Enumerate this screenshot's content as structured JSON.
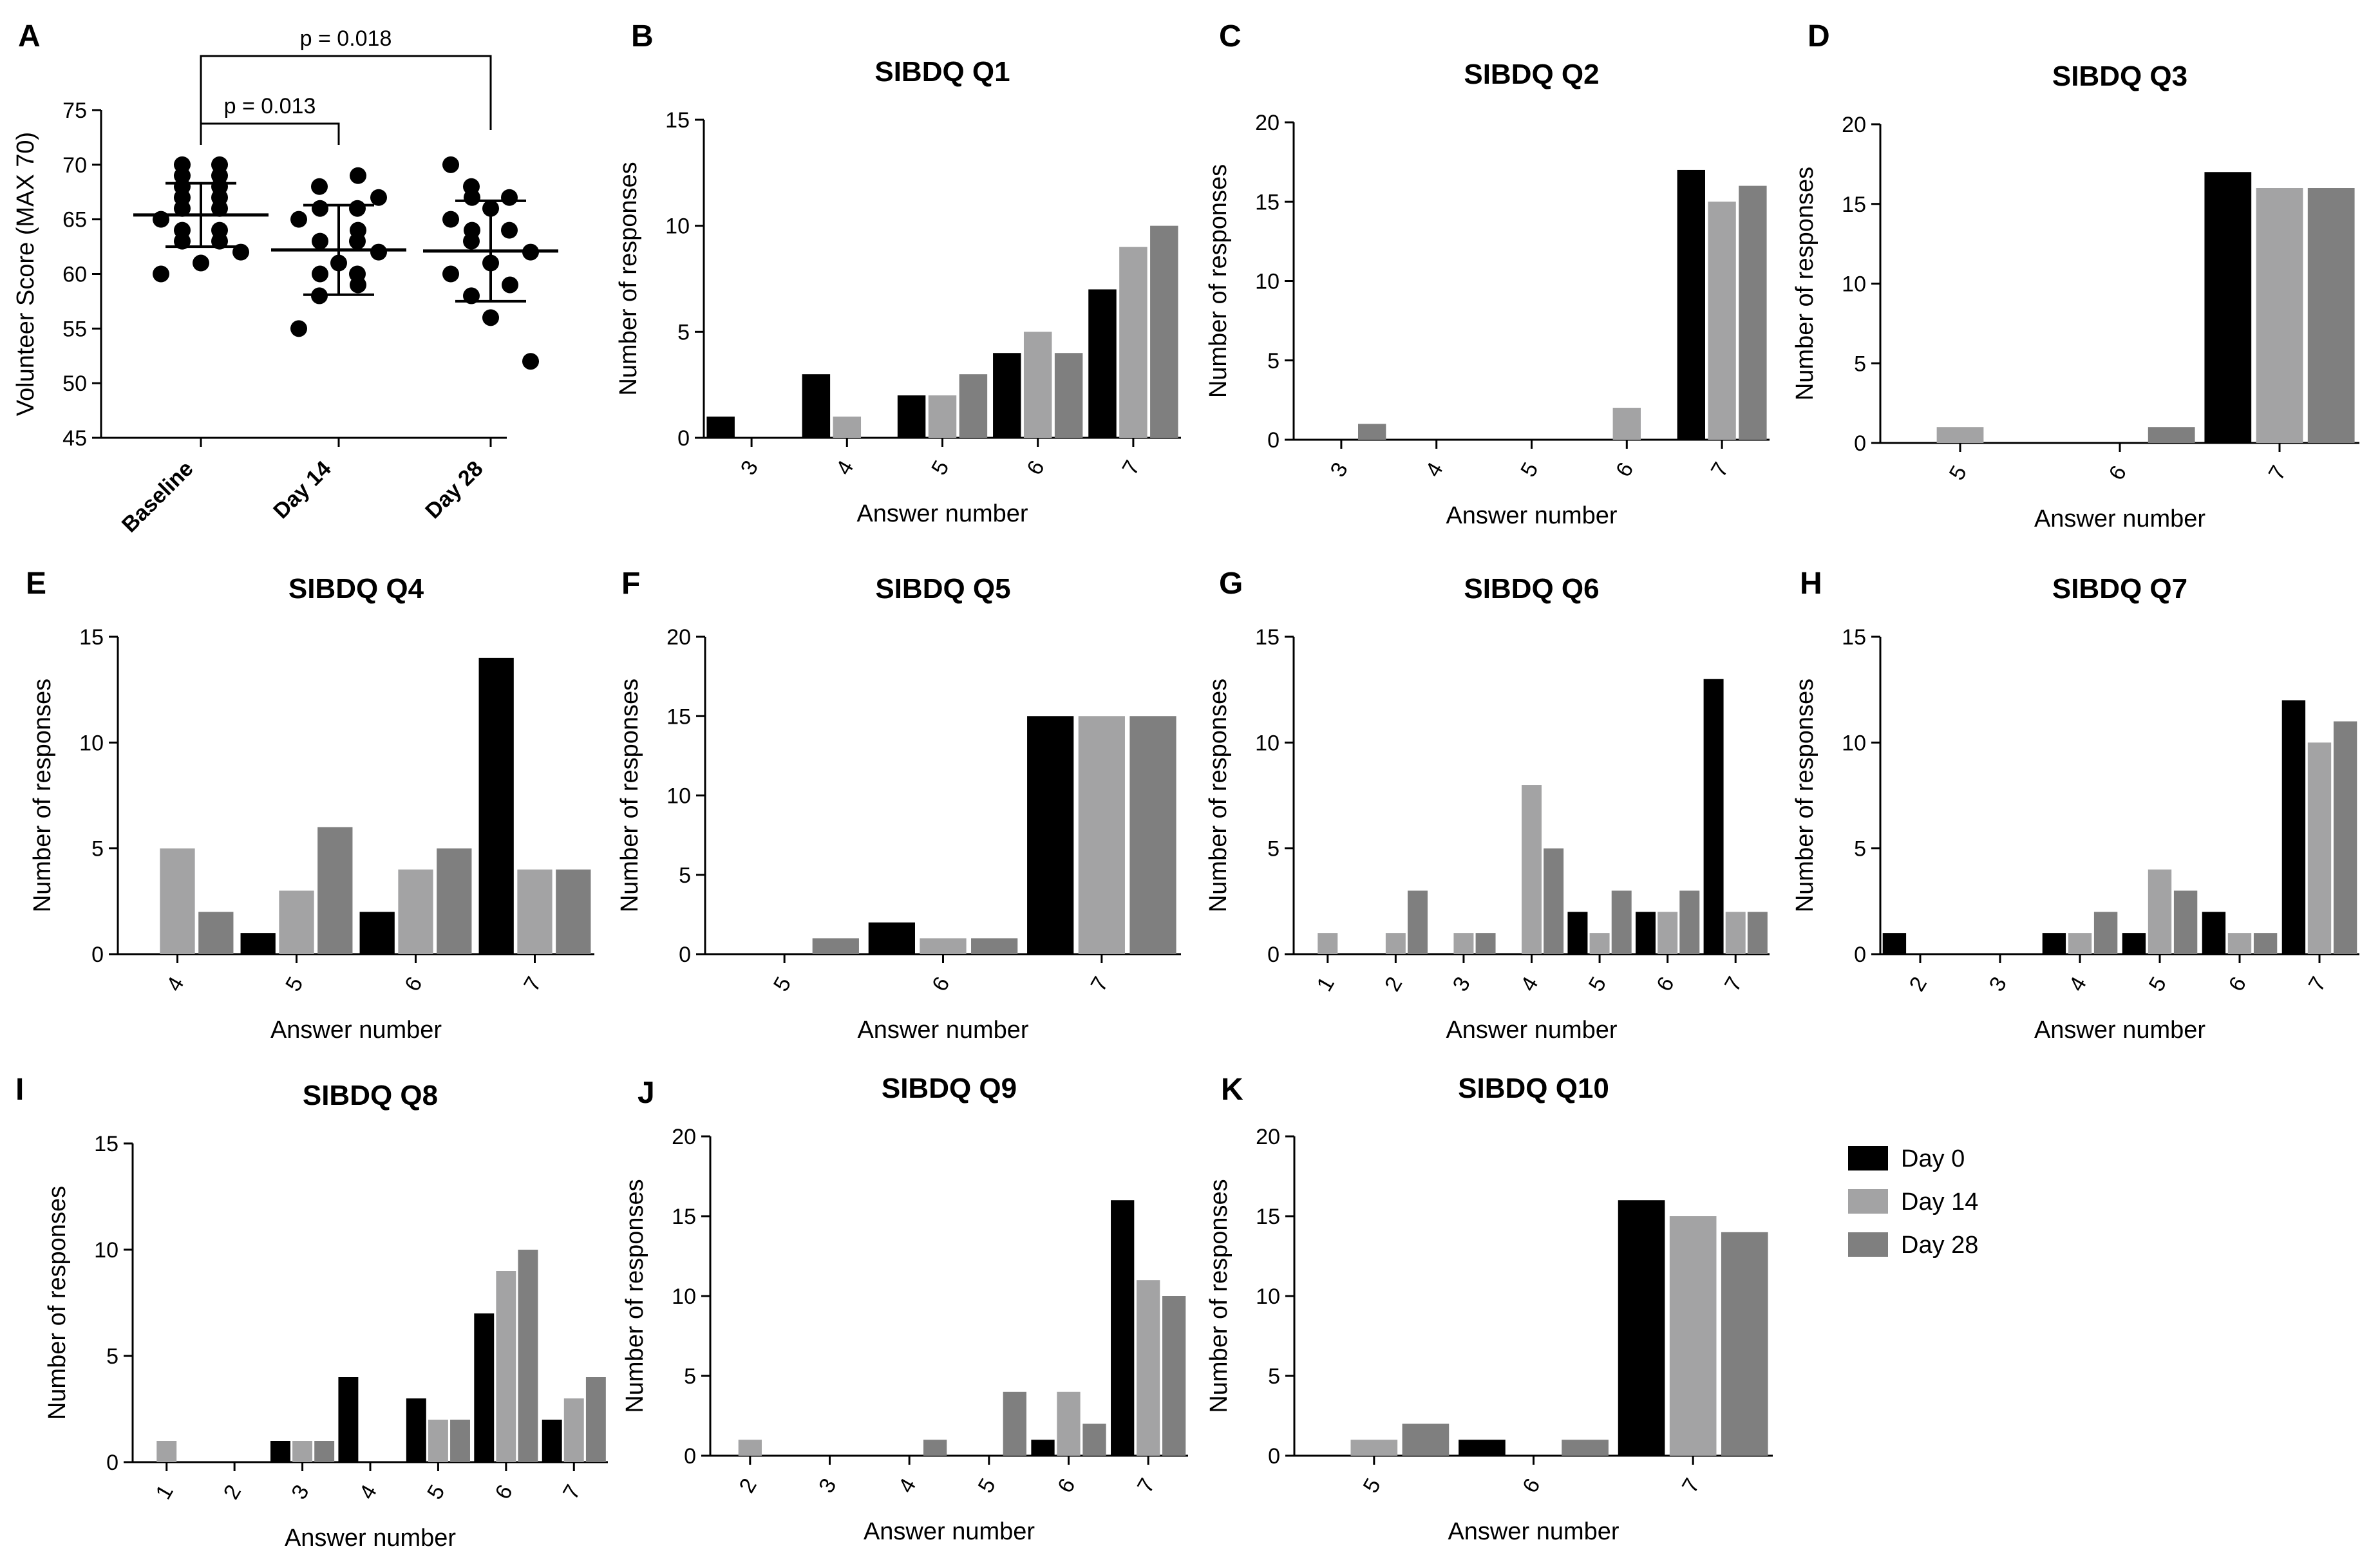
{
  "colors": {
    "day0": "#000000",
    "day14": "#a3a3a4",
    "day28": "#7f7f7f"
  },
  "legend": {
    "items": [
      {
        "label": "Day 0",
        "color_key": "day0"
      },
      {
        "label": "Day 14",
        "color_key": "day14"
      },
      {
        "label": "Day 28",
        "color_key": "day28"
      }
    ]
  },
  "chart_data": [
    {
      "id": "A",
      "type": "scatter",
      "letter": "A",
      "title": "",
      "ylabel": "Volunteer Score (MAX 70)",
      "ylim": [
        45,
        75
      ],
      "yticks": [
        45,
        50,
        55,
        60,
        65,
        70,
        75
      ],
      "categories": [
        "Baseline",
        "Day 14",
        "Day 28"
      ],
      "points": [
        [
          70,
          70,
          69,
          69,
          68,
          68,
          67,
          67,
          66,
          66,
          65,
          64,
          64,
          63,
          63,
          62,
          61,
          60
        ],
        [
          69,
          68,
          67,
          66,
          66,
          65,
          64,
          63,
          63,
          62,
          61,
          60,
          60,
          59,
          58,
          55
        ],
        [
          70,
          68,
          67,
          67,
          66,
          65,
          64,
          64,
          63,
          62,
          61,
          60,
          59,
          58,
          56,
          52
        ]
      ],
      "means": [
        65.4,
        62.2,
        62.1
      ],
      "sd": [
        2.9,
        4.1,
        4.6
      ],
      "comparisons": [
        {
          "from": 0,
          "to": 1,
          "label": "p = 0.013"
        },
        {
          "from": 0,
          "to": 2,
          "label": "p = 0.018"
        }
      ]
    },
    {
      "id": "B",
      "type": "bar",
      "letter": "B",
      "title": "SIBDQ Q1",
      "xlabel": "Answer number",
      "ylabel": "Number of responses",
      "ylim": [
        0,
        15
      ],
      "yticks": [
        0,
        5,
        10,
        15
      ],
      "categories": [
        "3",
        "4",
        "5",
        "6",
        "7"
      ],
      "series": [
        {
          "name": "Day 0",
          "values": [
            1,
            3,
            2,
            4,
            7
          ]
        },
        {
          "name": "Day 14",
          "values": [
            0,
            1,
            2,
            5,
            9
          ]
        },
        {
          "name": "Day 28",
          "values": [
            0,
            0,
            3,
            4,
            10
          ]
        }
      ]
    },
    {
      "id": "C",
      "type": "bar",
      "letter": "C",
      "title": "SIBDQ Q2",
      "xlabel": "Answer number",
      "ylabel": "Number of responses",
      "ylim": [
        0,
        20
      ],
      "yticks": [
        0,
        5,
        10,
        15,
        20
      ],
      "categories": [
        "3",
        "4",
        "5",
        "6",
        "7"
      ],
      "series": [
        {
          "name": "Day 0",
          "values": [
            0,
            0,
            0,
            0,
            17
          ]
        },
        {
          "name": "Day 14",
          "values": [
            0,
            0,
            0,
            2,
            15
          ]
        },
        {
          "name": "Day 28",
          "values": [
            1,
            0,
            0,
            0,
            16
          ]
        }
      ]
    },
    {
      "id": "D",
      "type": "bar",
      "letter": "D",
      "title": "SIBDQ Q3",
      "xlabel": "Answer number",
      "ylabel": "Number of responses",
      "ylim": [
        0,
        20
      ],
      "yticks": [
        0,
        5,
        10,
        15,
        20
      ],
      "categories": [
        "5",
        "6",
        "7"
      ],
      "series": [
        {
          "name": "Day 0",
          "values": [
            0,
            0,
            17
          ]
        },
        {
          "name": "Day 14",
          "values": [
            1,
            0,
            16
          ]
        },
        {
          "name": "Day 28",
          "values": [
            0,
            1,
            16
          ]
        }
      ]
    },
    {
      "id": "E",
      "type": "bar",
      "letter": "E",
      "title": "SIBDQ Q4",
      "xlabel": "Answer number",
      "ylabel": "Number of responses",
      "ylim": [
        0,
        15
      ],
      "yticks": [
        0,
        5,
        10,
        15
      ],
      "categories": [
        "4",
        "5",
        "6",
        "7"
      ],
      "series": [
        {
          "name": "Day 0",
          "values": [
            0,
            1,
            2,
            14
          ]
        },
        {
          "name": "Day 14",
          "values": [
            5,
            3,
            4,
            4
          ]
        },
        {
          "name": "Day 28",
          "values": [
            2,
            6,
            5,
            4
          ]
        }
      ]
    },
    {
      "id": "F",
      "type": "bar",
      "letter": "F",
      "title": "SIBDQ Q5",
      "xlabel": "Answer number",
      "ylabel": "Number of responses",
      "ylim": [
        0,
        20
      ],
      "yticks": [
        0,
        5,
        10,
        15,
        20
      ],
      "categories": [
        "5",
        "6",
        "7"
      ],
      "series": [
        {
          "name": "Day 0",
          "values": [
            0,
            2,
            15
          ]
        },
        {
          "name": "Day 14",
          "values": [
            0,
            1,
            15
          ]
        },
        {
          "name": "Day 28",
          "values": [
            1,
            1,
            15
          ]
        }
      ]
    },
    {
      "id": "G",
      "type": "bar",
      "letter": "G",
      "title": "SIBDQ Q6",
      "xlabel": "Answer number",
      "ylabel": "Number of responses",
      "ylim": [
        0,
        15
      ],
      "yticks": [
        0,
        5,
        10,
        15
      ],
      "categories": [
        "1",
        "2",
        "3",
        "4",
        "5",
        "6",
        "7"
      ],
      "series": [
        {
          "name": "Day 0",
          "values": [
            0,
            0,
            0,
            0,
            2,
            2,
            13
          ]
        },
        {
          "name": "Day 14",
          "values": [
            1,
            1,
            1,
            8,
            1,
            2,
            2
          ]
        },
        {
          "name": "Day 28",
          "values": [
            0,
            3,
            1,
            5,
            3,
            3,
            2
          ]
        }
      ]
    },
    {
      "id": "H",
      "type": "bar",
      "letter": "H",
      "title": "SIBDQ Q7",
      "xlabel": "Answer number",
      "ylabel": "Number of responses",
      "ylim": [
        0,
        15
      ],
      "yticks": [
        0,
        5,
        10,
        15
      ],
      "categories": [
        "2",
        "3",
        "4",
        "5",
        "6",
        "7"
      ],
      "series": [
        {
          "name": "Day 0",
          "values": [
            1,
            0,
            1,
            1,
            2,
            12
          ]
        },
        {
          "name": "Day 14",
          "values": [
            0,
            0,
            1,
            4,
            1,
            10
          ]
        },
        {
          "name": "Day 28",
          "values": [
            0,
            0,
            2,
            3,
            1,
            11
          ]
        }
      ]
    },
    {
      "id": "I",
      "type": "bar",
      "letter": "I",
      "title": "SIBDQ Q8",
      "xlabel": "Answer number",
      "ylabel": "Number of responses",
      "ylim": [
        0,
        15
      ],
      "yticks": [
        0,
        5,
        10,
        15
      ],
      "categories": [
        "1",
        "2",
        "3",
        "4",
        "5",
        "6",
        "7"
      ],
      "series": [
        {
          "name": "Day 0",
          "values": [
            0,
            0,
            1,
            4,
            3,
            7,
            2
          ]
        },
        {
          "name": "Day 14",
          "values": [
            1,
            0,
            1,
            0,
            2,
            9,
            3
          ]
        },
        {
          "name": "Day 28",
          "values": [
            0,
            0,
            1,
            0,
            2,
            10,
            4
          ]
        }
      ]
    },
    {
      "id": "J",
      "type": "bar",
      "letter": "J",
      "title": "SIBDQ Q9",
      "xlabel": "Answer number",
      "ylabel": "Number of responses",
      "ylim": [
        0,
        20
      ],
      "yticks": [
        0,
        5,
        10,
        15,
        20
      ],
      "categories": [
        "2",
        "3",
        "4",
        "5",
        "6",
        "7"
      ],
      "series": [
        {
          "name": "Day 0",
          "values": [
            0,
            0,
            0,
            0,
            1,
            16
          ]
        },
        {
          "name": "Day 14",
          "values": [
            1,
            0,
            0,
            0,
            4,
            11
          ]
        },
        {
          "name": "Day 28",
          "values": [
            0,
            0,
            1,
            4,
            2,
            10
          ]
        }
      ]
    },
    {
      "id": "K",
      "type": "bar",
      "letter": "K",
      "title": "SIBDQ Q10",
      "xlabel": "Answer number",
      "ylabel": "Number of responses",
      "ylim": [
        0,
        20
      ],
      "yticks": [
        0,
        5,
        10,
        15,
        20
      ],
      "categories": [
        "5",
        "6",
        "7"
      ],
      "series": [
        {
          "name": "Day 0",
          "values": [
            0,
            1,
            16
          ]
        },
        {
          "name": "Day 14",
          "values": [
            1,
            0,
            15
          ]
        },
        {
          "name": "Day 28",
          "values": [
            2,
            1,
            14
          ]
        }
      ]
    }
  ]
}
